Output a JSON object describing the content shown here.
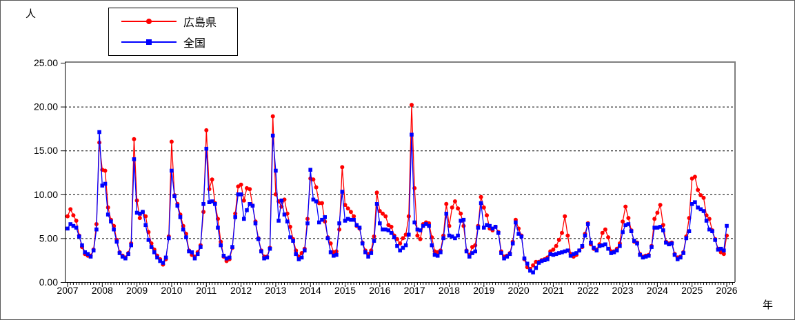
{
  "axes": {
    "y_title": "人",
    "x_title": "年"
  },
  "legend": {
    "items": [
      {
        "label": "広島県",
        "color": "#ff0000",
        "marker": "circle"
      },
      {
        "label": "全国",
        "color": "#0000ff",
        "marker": "square"
      }
    ]
  },
  "chart_data": {
    "type": "line",
    "title": "",
    "ylabel": "人",
    "xlabel": "年",
    "x_unit": "month",
    "x_start": "2007-01",
    "x_end": "2026-01",
    "points_per_series": 229,
    "ylim": [
      0,
      25
    ],
    "yticks": [
      [
        0,
        "0.00"
      ],
      [
        5,
        "5.00"
      ],
      [
        10,
        "10.00"
      ],
      [
        15,
        "15.00"
      ],
      [
        20,
        "20.00"
      ],
      [
        25,
        "25.00"
      ]
    ],
    "grid_lines": [
      5,
      10,
      15,
      20
    ],
    "grid_style": "dashed horizontal",
    "legend_position": "top-left",
    "year_labels": [
      2007,
      2008,
      2009,
      2010,
      2011,
      2012,
      2013,
      2014,
      2015,
      2016,
      2017,
      2018,
      2019,
      2020,
      2021,
      2022,
      2023,
      2024,
      2025,
      2026
    ],
    "series": [
      {
        "name": "広島県",
        "color": "#ff0000",
        "marker": "circle",
        "values": [
          7.5,
          8.3,
          7.6,
          7.0,
          5.3,
          4.0,
          3.2,
          3.0,
          3.0,
          3.7,
          6.6,
          15.9,
          12.8,
          12.7,
          8.5,
          7.1,
          6.4,
          4.8,
          3.4,
          3.0,
          2.8,
          3.3,
          4.4,
          16.3,
          9.3,
          7.3,
          8.0,
          7.5,
          5.7,
          4.4,
          3.7,
          3.0,
          2.6,
          2.0,
          2.6,
          5.2,
          16.0,
          9.9,
          8.9,
          7.7,
          6.4,
          5.5,
          3.6,
          3.1,
          2.9,
          3.4,
          4.2,
          8.0,
          17.3,
          10.6,
          11.7,
          9.0,
          7.2,
          4.6,
          2.9,
          2.4,
          2.6,
          3.9,
          7.8,
          10.9,
          11.1,
          9.3,
          10.7,
          10.6,
          8.7,
          6.9,
          5.0,
          3.6,
          2.9,
          2.9,
          3.9,
          18.9,
          10.0,
          9.2,
          8.6,
          9.4,
          7.8,
          6.3,
          4.9,
          3.6,
          2.9,
          3.3,
          3.8,
          7.2,
          11.8,
          11.7,
          10.8,
          9.0,
          9.0,
          6.9,
          5.1,
          4.4,
          3.4,
          3.5,
          6.0,
          13.1,
          8.8,
          8.4,
          8.0,
          7.5,
          6.4,
          6.1,
          4.5,
          3.6,
          3.2,
          3.6,
          5.2,
          10.2,
          8.1,
          7.8,
          7.5,
          6.5,
          6.3,
          5.3,
          4.9,
          4.4,
          5.0,
          5.4,
          7.5,
          20.2,
          10.7,
          5.3,
          4.9,
          6.6,
          6.8,
          6.7,
          5.1,
          3.5,
          3.4,
          3.6,
          5.3,
          8.9,
          6.4,
          8.5,
          9.2,
          8.4,
          7.8,
          6.4,
          3.6,
          3.1,
          4.0,
          4.2,
          6.4,
          9.7,
          8.5,
          7.6,
          6.1,
          5.9,
          6.3,
          5.7,
          3.5,
          2.9,
          3.0,
          3.3,
          4.6,
          7.1,
          6.1,
          5.3,
          2.6,
          1.7,
          1.5,
          1.9,
          2.3,
          2.3,
          2.5,
          2.6,
          2.8,
          3.5,
          3.7,
          4.1,
          4.8,
          5.6,
          7.5,
          5.3,
          3.2,
          2.9,
          3.1,
          3.6,
          4.0,
          5.5,
          6.7,
          4.3,
          3.8,
          3.7,
          4.3,
          5.6,
          6.0,
          5.1,
          3.5,
          3.5,
          3.8,
          4.4,
          6.9,
          8.6,
          7.3,
          5.9,
          4.6,
          4.5,
          3.2,
          2.9,
          3.0,
          3.1,
          4.1,
          7.2,
          7.9,
          8.8,
          6.5,
          4.6,
          4.4,
          4.5,
          3.2,
          2.8,
          2.9,
          3.4,
          5.2,
          7.3,
          11.8,
          12.0,
          10.5,
          9.9,
          9.6,
          7.6,
          7.2,
          5.9,
          4.9,
          3.8,
          3.4,
          3.2,
          5.3
        ]
      },
      {
        "name": "全国",
        "color": "#0000ff",
        "marker": "square",
        "values": [
          6.1,
          6.6,
          6.4,
          6.2,
          5.2,
          4.2,
          3.4,
          3.2,
          2.9,
          3.6,
          6.0,
          17.1,
          11.0,
          11.2,
          7.7,
          6.9,
          6.0,
          4.6,
          3.3,
          2.9,
          2.7,
          3.2,
          4.2,
          14.0,
          7.9,
          7.8,
          8.0,
          6.5,
          4.8,
          4.0,
          3.4,
          2.8,
          2.4,
          2.2,
          2.8,
          5.0,
          12.7,
          9.8,
          8.7,
          7.4,
          6.0,
          5.1,
          3.5,
          3.4,
          2.7,
          3.2,
          4.0,
          8.9,
          15.2,
          9.1,
          9.2,
          8.9,
          6.2,
          4.2,
          3.0,
          2.7,
          2.8,
          4.0,
          7.4,
          10.0,
          10.0,
          7.2,
          8.2,
          8.9,
          8.7,
          6.7,
          4.9,
          3.5,
          2.7,
          2.8,
          3.8,
          16.7,
          12.7,
          7.0,
          9.3,
          7.7,
          6.9,
          5.1,
          4.7,
          3.2,
          2.6,
          2.8,
          3.6,
          6.7,
          12.8,
          9.4,
          9.2,
          6.8,
          7.1,
          7.4,
          5.0,
          3.4,
          3.0,
          3.1,
          6.7,
          10.3,
          7.0,
          7.2,
          7.1,
          7.1,
          6.5,
          6.2,
          4.4,
          3.4,
          2.9,
          3.3,
          4.7,
          8.9,
          6.7,
          6.0,
          6.0,
          5.9,
          5.6,
          5.1,
          4.1,
          3.6,
          3.9,
          4.2,
          5.4,
          16.8,
          6.8,
          6.0,
          5.9,
          6.4,
          6.6,
          6.4,
          4.2,
          3.1,
          3.0,
          3.4,
          5.0,
          7.8,
          5.3,
          5.2,
          5.0,
          5.3,
          7.0,
          7.1,
          3.5,
          2.9,
          3.3,
          3.5,
          6.2,
          9.0,
          6.2,
          6.5,
          6.4,
          6.1,
          6.3,
          5.6,
          3.3,
          2.7,
          2.9,
          3.2,
          4.4,
          6.8,
          5.5,
          5.2,
          2.7,
          2.1,
          1.3,
          1.1,
          1.6,
          2.2,
          2.4,
          2.5,
          2.6,
          3.2,
          3.1,
          3.2,
          3.3,
          3.4,
          3.5,
          3.6,
          3.0,
          3.2,
          3.3,
          3.6,
          4.1,
          5.3,
          6.6,
          4.5,
          3.9,
          3.6,
          4.1,
          4.2,
          4.3,
          3.8,
          3.3,
          3.4,
          3.6,
          4.1,
          5.7,
          6.5,
          6.6,
          5.8,
          4.7,
          4.4,
          3.1,
          2.8,
          2.9,
          3.0,
          4.0,
          6.2,
          6.2,
          6.3,
          5.9,
          4.5,
          4.3,
          4.4,
          3.1,
          2.6,
          2.8,
          3.3,
          5.0,
          5.8,
          8.9,
          9.1,
          8.5,
          8.3,
          8.1,
          7.0,
          6.0,
          5.8,
          4.8,
          3.7,
          3.8,
          3.6,
          6.4
        ]
      }
    ]
  }
}
